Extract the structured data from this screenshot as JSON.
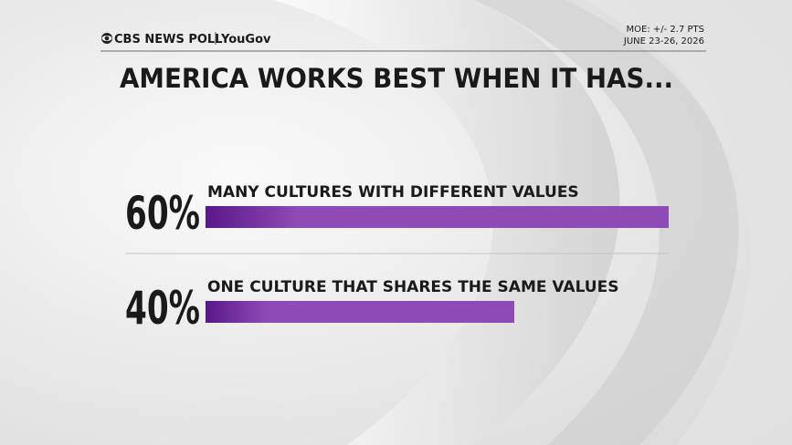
{
  "chart_data": {
    "type": "bar",
    "source": "CBS NEWS POLL",
    "partner": "YouGov",
    "moe": "MOE: +/- 2.7 PTS",
    "dates": "JUNE 23-26, 2026",
    "title": "AMERICA WORKS BEST WHEN IT HAS...",
    "categories": [
      "MANY CULTURES WITH DIFFERENT VALUES",
      "ONE CULTURE THAT SHARES THE SAME VALUES"
    ],
    "values": [
      60,
      40
    ],
    "value_labels": [
      "60%",
      "40%"
    ],
    "color": "#8e4bb6"
  }
}
